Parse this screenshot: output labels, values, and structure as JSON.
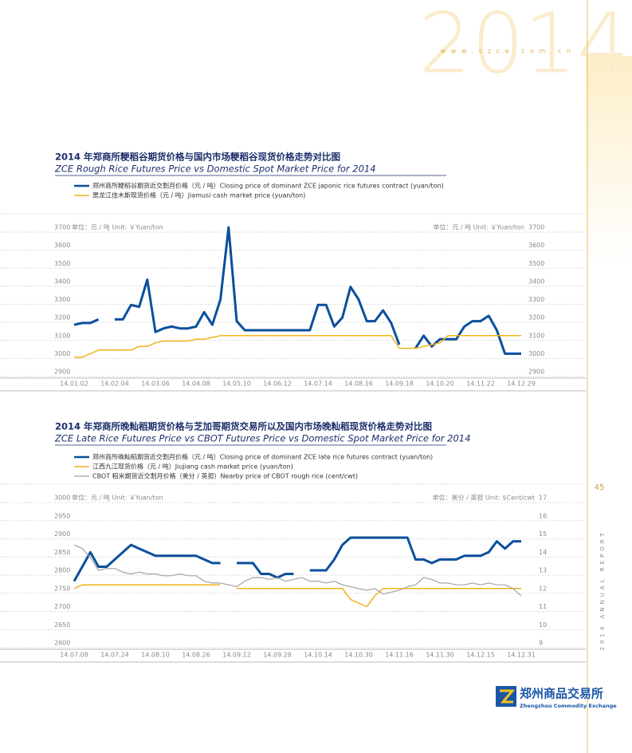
{
  "header": {
    "year": "2014",
    "website": "w w w . c z c e . c o m . c n"
  },
  "sidebar": {
    "page_number": "45",
    "report": "2014 ANNUAL REPORT"
  },
  "footer": {
    "logo_cn": "郑州商品交易所",
    "logo_en": "Zhengzhou Commodity Exchange"
  },
  "chart_data": [
    {
      "type": "line",
      "title": "2014 年郑商所粳稻谷期货价格与国内市场粳稻谷现货价格走势对比图",
      "subtitle": "ZCE Rough Rice Futures Price vs Domestic Spot Market Price for 2014",
      "y_unit_label": "单位：元 / 吨  Unit: ￥Yuan/ton",
      "y2_unit_label": "单位：元 / 吨  Unit: ￥Yuan/ton",
      "categories": [
        "14.01.02",
        null,
        null,
        null,
        null,
        "14.02.04",
        null,
        null,
        null,
        null,
        "14.03.06",
        null,
        null,
        null,
        null,
        "14.04.08",
        null,
        null,
        null,
        null,
        "14.05.10",
        null,
        null,
        null,
        null,
        "14.06.12",
        null,
        null,
        null,
        null,
        "14.07.14",
        null,
        null,
        null,
        null,
        "14.08.16",
        null,
        null,
        null,
        null,
        "14.09.18",
        null,
        null,
        null,
        null,
        "14.10.20",
        null,
        null,
        null,
        null,
        "14.11.22",
        null,
        null,
        null,
        null,
        "14.12.29"
      ],
      "ylim": [
        2900,
        3700
      ],
      "yticks": [
        2900,
        3000,
        3100,
        3200,
        3300,
        3400,
        3500,
        3600,
        3700
      ],
      "y2lim": [
        2900,
        3700
      ],
      "y2ticks": [
        2900,
        3000,
        3100,
        3200,
        3300,
        3400,
        3500,
        3600,
        3700
      ],
      "grid": true,
      "series": [
        {
          "name": "郑州商所粳稻谷期货近交割月价格（元 / 吨）Closing price of dominant ZCE japonic rice futures contract (yuan/ton)",
          "color": "#0b4f9c",
          "width": 3,
          "values": [
            3160,
            3170,
            3170,
            3190,
            null,
            3190,
            3190,
            3270,
            3260,
            3410,
            3120,
            3140,
            3150,
            3140,
            3140,
            3150,
            3230,
            3160,
            3300,
            3700,
            3180,
            3130,
            3130,
            3130,
            3130,
            3130,
            3130,
            3130,
            3130,
            3130,
            3270,
            3270,
            3150,
            3200,
            3370,
            3300,
            3180,
            3180,
            3240,
            3170,
            3050,
            null,
            3030,
            3100,
            3040,
            3080,
            3080,
            3080,
            3150,
            3180,
            3180,
            3210,
            3130,
            3000,
            3000,
            3000
          ]
        },
        {
          "name": "黑龙江佳木斯现货价格（元 / 吨）Jiamusi cash market price (yuan/ton)",
          "color": "#f0b41c",
          "width": 1.5,
          "values": [
            2980,
            2980,
            3000,
            3020,
            3020,
            3020,
            3020,
            3020,
            3040,
            3040,
            3060,
            3070,
            3070,
            3070,
            3070,
            3080,
            3080,
            3090,
            3100,
            3100,
            3100,
            3100,
            3100,
            3100,
            3100,
            3100,
            3100,
            3100,
            3100,
            3100,
            3100,
            3100,
            3100,
            3100,
            3100,
            3100,
            3100,
            3100,
            3100,
            3100,
            3030,
            3030,
            3030,
            3040,
            3050,
            3060,
            3100,
            3100,
            3100,
            3100,
            3100,
            3100,
            3100,
            3100,
            3100,
            3100
          ]
        }
      ]
    },
    {
      "type": "line",
      "title": "2014 年郑商所晚籼稻期货价格与芝加哥期货交易所以及国内市场晚籼稻现货价格走势对比图",
      "subtitle": "ZCE Late Rice Futures Price vs CBOT Futures Price vs Domestic Spot Market Price for 2014",
      "y_unit_label": "单位：元 / 吨  Unit: ￥Yuan/ton",
      "y2_unit_label": "单位：美分 / 英担  Unit: $Cent/cwt",
      "categories": [
        "14.07.08",
        null,
        null,
        null,
        null,
        "14.07.24",
        null,
        null,
        null,
        null,
        "14.08.10",
        null,
        null,
        null,
        null,
        "14.08.26",
        null,
        null,
        null,
        null,
        "14.09.12",
        null,
        null,
        null,
        null,
        "14.09.28",
        null,
        null,
        null,
        null,
        "14.10.14",
        null,
        null,
        null,
        null,
        "14.10.30",
        null,
        null,
        null,
        null,
        "14.11.16",
        null,
        null,
        null,
        null,
        "14.11.30",
        null,
        null,
        null,
        null,
        "14.12.15",
        null,
        null,
        null,
        null,
        "14.12.31"
      ],
      "ylim": [
        2600,
        3000
      ],
      "yticks": [
        2600,
        2650,
        2700,
        2750,
        2800,
        2850,
        2900,
        2950,
        3000
      ],
      "y2lim": [
        9,
        17
      ],
      "y2ticks": [
        9,
        10,
        11,
        12,
        13,
        14,
        15,
        16,
        17
      ],
      "grid": true,
      "series": [
        {
          "name": "郑州商所晚籼稻期货近交割月价格（元 / 吨）Closing price of dominant ZCE late rice futures contract (yuan/ton)",
          "color": "#0b4f9c",
          "width": 3,
          "values": [
            2770,
            2810,
            2850,
            2810,
            2810,
            2830,
            2850,
            2870,
            2860,
            2850,
            2840,
            2840,
            2840,
            2840,
            2840,
            2840,
            2830,
            2820,
            2820,
            null,
            2820,
            2820,
            2820,
            2790,
            2790,
            2780,
            2790,
            2790,
            null,
            2800,
            2800,
            2800,
            2830,
            2870,
            2890,
            2890,
            2890,
            2890,
            2890,
            2890,
            2890,
            2890,
            2830,
            2830,
            2820,
            2830,
            2830,
            2830,
            2840,
            2840,
            2840,
            2850,
            2880,
            2860,
            2880,
            2880
          ]
        },
        {
          "name": "江西九江现货价格（元 / 吨）Jiujiang cash market price (yuan/ton)",
          "color": "#f0b41c",
          "width": 1.5,
          "values": [
            2750,
            2760,
            2760,
            2760,
            2760,
            2760,
            2760,
            2760,
            2760,
            2760,
            2760,
            2760,
            2760,
            2760,
            2760,
            2760,
            2760,
            2760,
            2760,
            null,
            2750,
            2750,
            2750,
            2750,
            2750,
            2750,
            2750,
            2750,
            2750,
            2750,
            2750,
            2750,
            2750,
            2750,
            2720,
            2710,
            2700,
            2730,
            2750,
            2750,
            2750,
            2750,
            2750,
            2750,
            2750,
            2750,
            2750,
            2750,
            2750,
            2750,
            2750,
            2750,
            2750,
            2750,
            2750,
            2750
          ]
        },
        {
          "name": "CBOT 稻米期货近交割月价格（美分 / 英担）Nearby price of CBOT rough rice (cent/cwt)",
          "color": "#a3a3a3",
          "width": 1.2,
          "axis": "y2",
          "values": [
            14.4,
            14.2,
            13.7,
            13.0,
            13.1,
            13.1,
            12.9,
            12.8,
            12.9,
            12.8,
            12.8,
            12.7,
            12.7,
            12.8,
            12.7,
            12.7,
            12.4,
            12.3,
            12.3,
            12.2,
            12.1,
            12.4,
            12.6,
            12.6,
            12.5,
            12.6,
            12.4,
            12.5,
            12.6,
            12.4,
            12.4,
            12.3,
            12.4,
            12.2,
            12.1,
            12.0,
            11.9,
            12.0,
            11.7,
            11.8,
            11.9,
            12.1,
            12.2,
            12.6,
            12.5,
            12.3,
            12.3,
            12.2,
            12.2,
            12.3,
            12.2,
            12.3,
            12.2,
            12.2,
            12.0,
            11.6
          ]
        }
      ]
    }
  ]
}
